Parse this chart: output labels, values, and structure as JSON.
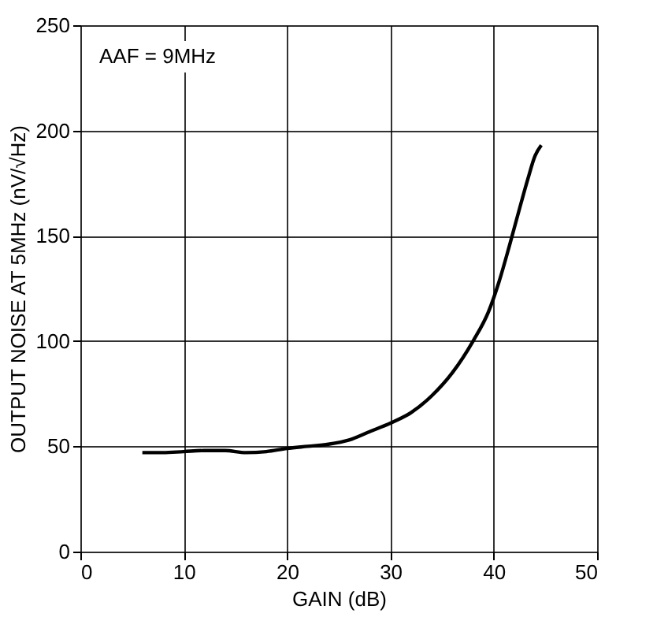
{
  "chart_data": {
    "type": "line",
    "xlabel": "GAIN (dB)",
    "ylabel": "OUTPUT NOISE AT 5MHz (nV/√Hz)",
    "annotations": [
      "AAF = 9MHz"
    ],
    "series": [
      {
        "color": "#000000",
        "x": [
          6,
          8,
          10,
          12,
          14,
          16,
          18,
          20,
          22,
          24,
          26,
          28,
          30,
          32,
          34,
          36,
          38,
          39.5,
          40.5,
          41.5,
          42.5,
          43.3,
          44,
          44.6
        ],
        "values": [
          47,
          47,
          47.5,
          48,
          48,
          47,
          47.5,
          49,
          50,
          51,
          53,
          57,
          61,
          66,
          74,
          85,
          100,
          114,
          128,
          145,
          163,
          177,
          188,
          193
        ]
      }
    ],
    "xlim": [
      0,
      50
    ],
    "ylim": [
      0,
      250
    ],
    "xticks": [
      0,
      10,
      20,
      30,
      40,
      50
    ],
    "yticks": [
      0,
      50,
      100,
      150,
      200,
      250
    ],
    "grid": true,
    "marker": "none",
    "line_style": "solid"
  }
}
